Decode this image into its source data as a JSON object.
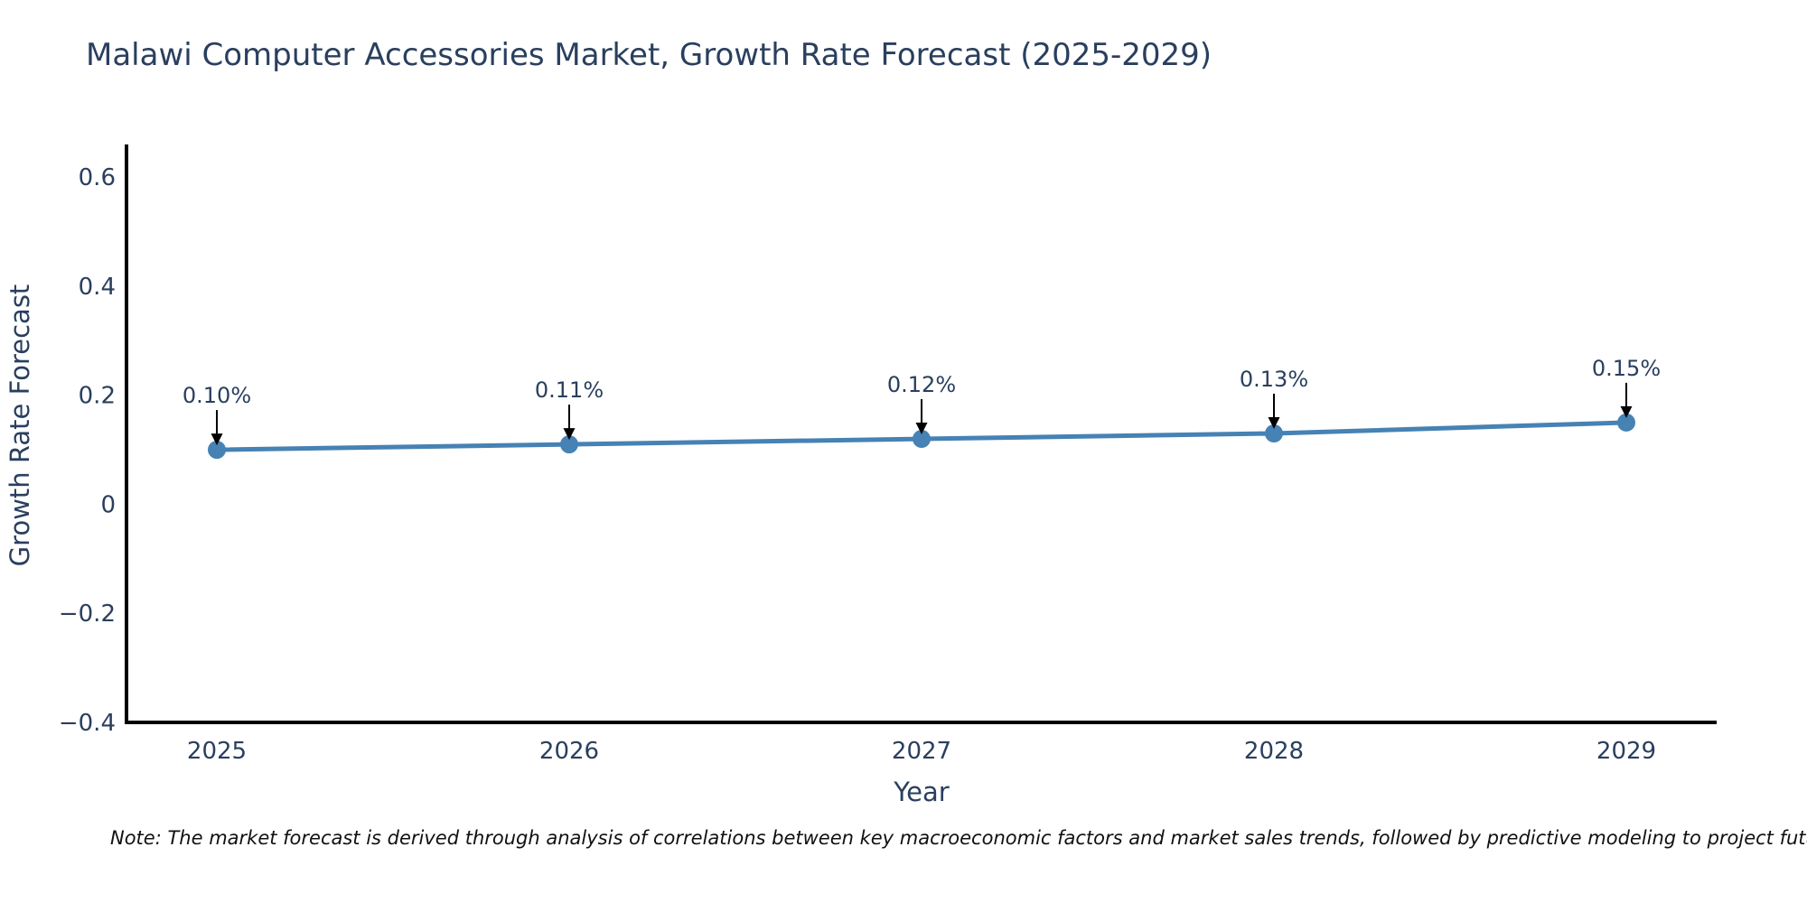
{
  "chart_data": {
    "type": "line",
    "title": "Malawi Computer Accessories Market, Growth Rate Forecast (2025-2029)",
    "xlabel": "Year",
    "ylabel": "Growth Rate Forecast",
    "x": [
      2025,
      2026,
      2027,
      2028,
      2029
    ],
    "series": [
      {
        "name": "Growth Rate Forecast",
        "values": [
          0.1,
          0.11,
          0.12,
          0.13,
          0.15
        ],
        "point_labels": [
          "0.10%",
          "0.11%",
          "0.12%",
          "0.13%",
          "0.15%"
        ]
      }
    ],
    "ylim": [
      -0.4,
      0.66
    ],
    "yticks": [
      0.6,
      0.4,
      0.2,
      0,
      -0.2,
      -0.4
    ],
    "ytick_labels": [
      "0.6",
      "0.4",
      "0.2",
      "0",
      "−0.2",
      "−0.4"
    ],
    "xtick_labels": [
      "2025",
      "2026",
      "2027",
      "2028",
      "2029"
    ],
    "grid": false,
    "legend": "none",
    "annotation_style": "value labels above points with black down arrows",
    "colors": {
      "line": "#4682b4",
      "marker": "#4682b4",
      "axis": "#000000",
      "text": "#2a3f5f",
      "arrow": "#000000",
      "note_text": "#111111"
    },
    "note": "Note: The market forecast is derived through analysis of correlations between key macroeconomic factors and market sales trends, followed by predictive modeling to project future sal"
  }
}
